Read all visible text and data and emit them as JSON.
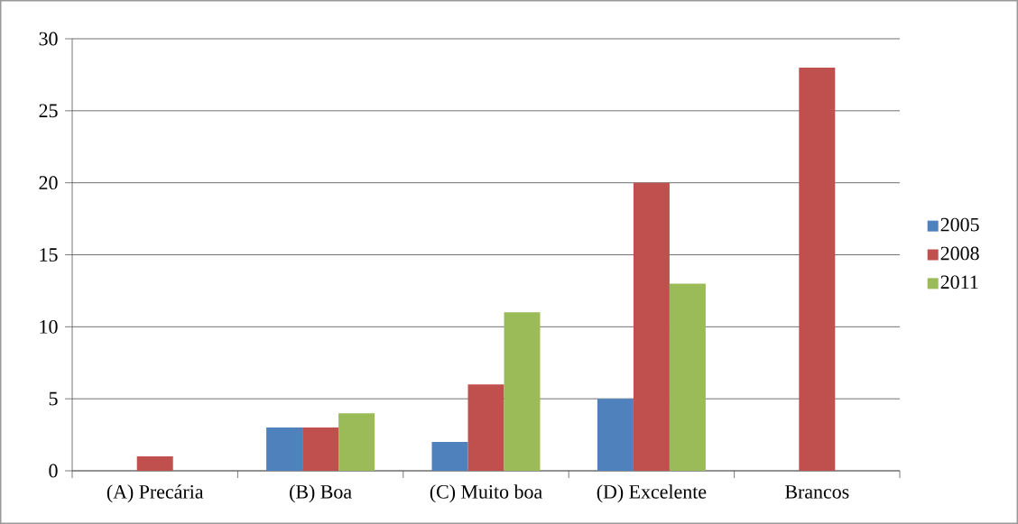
{
  "chart_data": {
    "type": "bar",
    "categories": [
      "(A) Precária",
      "(B) Boa",
      "(C) Muito boa",
      "(D) Excelente",
      "Brancos"
    ],
    "series": [
      {
        "name": "2005",
        "color": "#4f81bd",
        "values": [
          0,
          3,
          2,
          5,
          0
        ]
      },
      {
        "name": "2008",
        "color": "#c0504d",
        "values": [
          1,
          3,
          6,
          20,
          28
        ]
      },
      {
        "name": "2011",
        "color": "#9bbb59",
        "values": [
          0,
          4,
          11,
          13,
          0
        ]
      }
    ],
    "ylim": [
      0,
      30
    ],
    "yticks": [
      0,
      5,
      10,
      15,
      20,
      25,
      30
    ],
    "grid": "y",
    "legend": "right"
  }
}
